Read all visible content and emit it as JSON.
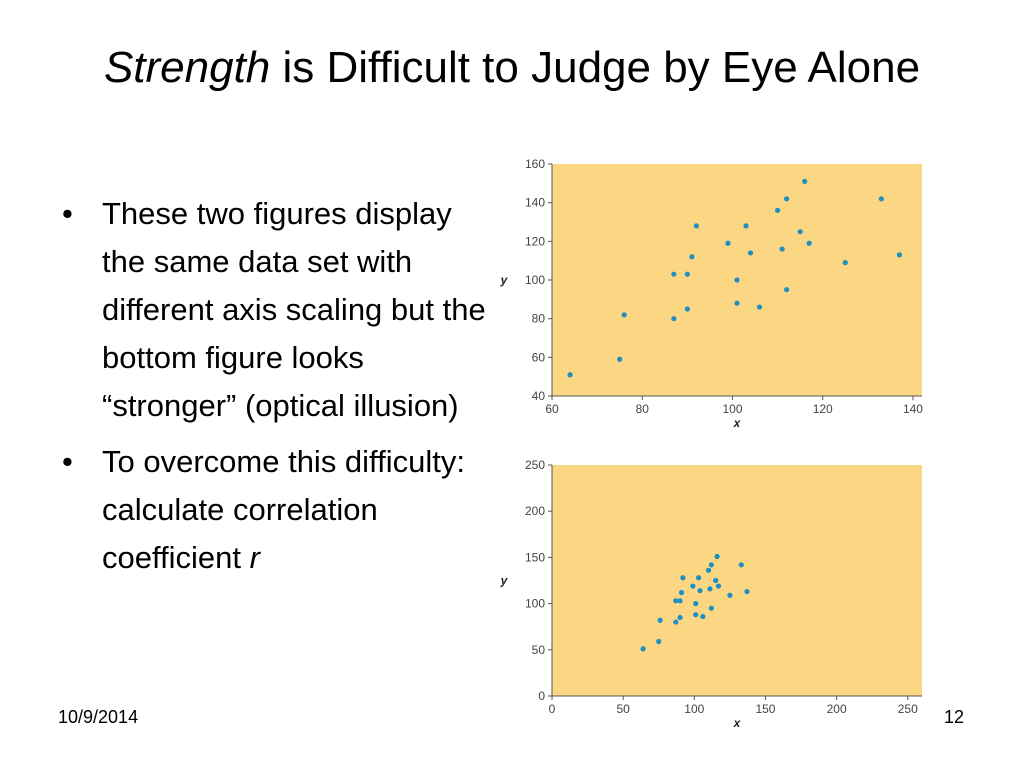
{
  "slide": {
    "title_italic": "Strength",
    "title_rest": " is Difficult to Judge by Eye Alone",
    "bullets": [
      {
        "text": "These two figures display the same data set with different axis scaling but the bottom figure looks “stronger” (optical illusion)"
      },
      {
        "text_before": "To overcome this difficulty: calculate correlation coefficient ",
        "italic": "r"
      }
    ],
    "footer_date": "10/9/2014",
    "page_number": "12",
    "bullet_glyph": "•"
  },
  "colors": {
    "plot_background": "#fbd784",
    "point_color": "#1f8ec0",
    "axis_color": "#555555"
  },
  "chart_data": [
    {
      "type": "scatter",
      "title": "",
      "xlabel": "x",
      "ylabel": "y",
      "xlim": [
        60,
        142
      ],
      "ylim": [
        40,
        160
      ],
      "xticks": [
        60,
        80,
        100,
        120,
        140
      ],
      "yticks": [
        40,
        60,
        80,
        100,
        120,
        140,
        160
      ],
      "grid": false,
      "x": [
        64,
        75,
        76,
        87,
        87,
        90,
        90,
        91,
        92,
        99,
        101,
        101,
        103,
        104,
        106,
        110,
        111,
        112,
        112,
        115,
        116,
        117,
        125,
        133,
        137
      ],
      "y": [
        51,
        59,
        82,
        80,
        103,
        85,
        103,
        112,
        128,
        119,
        100,
        88,
        128,
        114,
        86,
        136,
        116,
        95,
        142,
        125,
        151,
        119,
        109,
        142,
        113
      ]
    },
    {
      "type": "scatter",
      "title": "",
      "xlabel": "x",
      "ylabel": "y",
      "xlim": [
        0,
        260
      ],
      "ylim": [
        0,
        250
      ],
      "xticks": [
        0,
        50,
        100,
        150,
        200,
        250
      ],
      "yticks": [
        0,
        50,
        100,
        150,
        200,
        250
      ],
      "grid": false,
      "x": [
        64,
        75,
        76,
        87,
        87,
        90,
        90,
        91,
        92,
        99,
        101,
        101,
        103,
        104,
        106,
        110,
        111,
        112,
        112,
        115,
        116,
        117,
        125,
        133,
        137
      ],
      "y": [
        51,
        59,
        82,
        80,
        103,
        85,
        103,
        112,
        128,
        119,
        100,
        88,
        128,
        114,
        86,
        136,
        116,
        95,
        142,
        125,
        151,
        119,
        109,
        142,
        113
      ]
    }
  ]
}
